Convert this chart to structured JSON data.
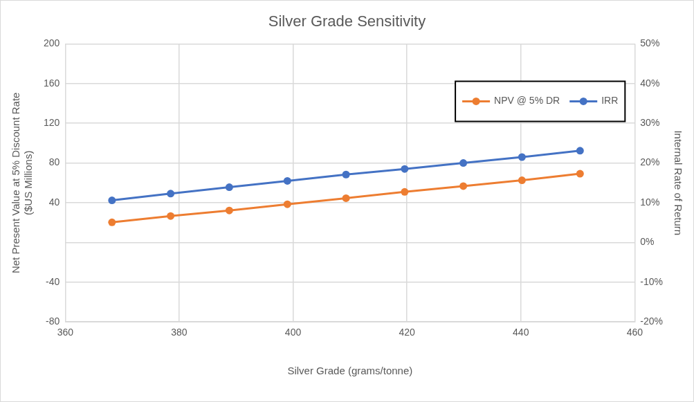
{
  "chart_data": {
    "type": "line",
    "title": "Silver Grade Sensitivity",
    "xlabel": "Silver Grade (grams/tonne)",
    "ylabel": "Net Present Value at 5% Discount Rate\n($US Millions)",
    "y2label": "Internal Rate of Return",
    "x": [
      368.2,
      378.5,
      388.8,
      399,
      409.3,
      419.6,
      429.9,
      440.2,
      450.4
    ],
    "series": [
      {
        "name": "NPV @ 5% DR",
        "color": "#ed7d31",
        "values": [
          20.3,
          26.6,
          32.2,
          38.5,
          44.6,
          50.9,
          56.8,
          62.6,
          69.2
        ]
      },
      {
        "name": "IRR",
        "color": "#4472c4",
        "axis": "y2",
        "values": [
          10.6,
          12.3,
          13.9,
          15.5,
          17.1,
          18.5,
          20.0,
          21.5,
          23.1
        ]
      }
    ],
    "xlim": [
      360,
      460
    ],
    "xticks": [
      360,
      380,
      400,
      420,
      440,
      460
    ],
    "ylim": [
      -80,
      200
    ],
    "yticks": [
      -80,
      -40,
      {
        "value": 0,
        "label": null
      },
      40,
      80,
      120,
      160,
      200
    ],
    "y2lim": [
      -20,
      50
    ],
    "y2ticks": [
      {
        "value": -20,
        "label": "-20%"
      },
      {
        "value": -10,
        "label": "-10%"
      },
      {
        "value": 0,
        "label": "0%"
      },
      {
        "value": 10,
        "label": "10%"
      },
      {
        "value": 20,
        "label": "20%"
      },
      {
        "value": 30,
        "label": "30%"
      },
      {
        "value": 40,
        "label": "40%"
      },
      {
        "value": 50,
        "label": "50%"
      }
    ],
    "grid": true,
    "legend": "top right",
    "marker": "circle",
    "line_style": "solid"
  }
}
